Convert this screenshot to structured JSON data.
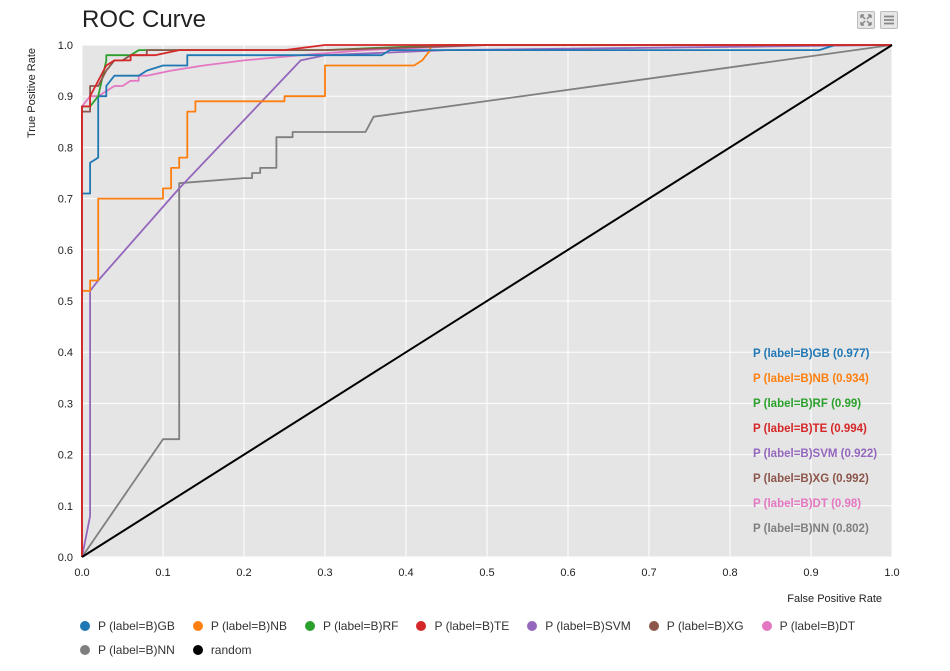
{
  "title": "ROC Curve",
  "toolbar": {
    "expand_icon": "expand-icon",
    "menu_icon": "hamburger-menu-icon"
  },
  "chart_data": {
    "type": "line",
    "title": "ROC Curve",
    "xlabel": "False Positive Rate",
    "ylabel": "True Positive Rate",
    "xlim": [
      0,
      1
    ],
    "ylim": [
      0,
      1
    ],
    "xticks": [
      "0.0",
      "0.1",
      "0.2",
      "0.3",
      "0.4",
      "0.5",
      "0.6",
      "0.7",
      "0.8",
      "0.9",
      "1.0"
    ],
    "yticks": [
      "0.0",
      "0.1",
      "0.2",
      "0.3",
      "0.4",
      "0.5",
      "0.6",
      "0.7",
      "0.8",
      "0.9",
      "1.0"
    ],
    "grid": true,
    "background": "#e5e5e5",
    "series": [
      {
        "name": "P (label=B)GB",
        "color": "#1f77b4",
        "auc_label": "P (label=B)GB (0.977)",
        "x": [
          0,
          0,
          0.01,
          0.01,
          0.02,
          0.02,
          0.03,
          0.03,
          0.04,
          0.05,
          0.07,
          0.08,
          0.1,
          0.13,
          0.13,
          0.37,
          0.38,
          0.4,
          0.4,
          0.91,
          0.93,
          1.0
        ],
        "y": [
          0,
          0.71,
          0.71,
          0.77,
          0.78,
          0.9,
          0.9,
          0.92,
          0.94,
          0.94,
          0.94,
          0.95,
          0.96,
          0.96,
          0.98,
          0.98,
          0.99,
          0.99,
          0.99,
          0.99,
          1.0,
          1.0
        ]
      },
      {
        "name": "P (label=B)NB",
        "color": "#ff7f0e",
        "auc_label": "P (label=B)NB (0.934)",
        "x": [
          0,
          0,
          0.01,
          0.01,
          0.02,
          0.02,
          0.1,
          0.1,
          0.11,
          0.11,
          0.12,
          0.12,
          0.13,
          0.13,
          0.14,
          0.14,
          0.25,
          0.25,
          0.3,
          0.3,
          0.41,
          0.42,
          0.43,
          0.43,
          0.48,
          1.0
        ],
        "y": [
          0,
          0.52,
          0.52,
          0.54,
          0.54,
          0.7,
          0.7,
          0.72,
          0.72,
          0.76,
          0.76,
          0.78,
          0.78,
          0.87,
          0.87,
          0.89,
          0.89,
          0.9,
          0.9,
          0.96,
          0.96,
          0.97,
          0.99,
          1.0,
          1.0,
          1.0
        ]
      },
      {
        "name": "P (label=B)RF",
        "color": "#2ca02c",
        "auc_label": "P (label=B)RF (0.99)",
        "x": [
          0,
          0,
          0.01,
          0.02,
          0.03,
          0.03,
          0.06,
          0.07,
          0.13,
          0.2,
          0.3,
          0.45,
          1.0
        ],
        "y": [
          0,
          0.88,
          0.88,
          0.9,
          0.97,
          0.98,
          0.98,
          0.99,
          0.99,
          0.99,
          0.99,
          1.0,
          1.0
        ]
      },
      {
        "name": "P (label=B)TE",
        "color": "#d62728",
        "auc_label": "P (label=B)TE (0.994)",
        "x": [
          0,
          0,
          0.01,
          0.01,
          0.02,
          0.03,
          0.04,
          0.06,
          0.06,
          0.09,
          0.12,
          0.25,
          0.3,
          0.5,
          1.0
        ],
        "y": [
          0,
          0.88,
          0.88,
          0.9,
          0.93,
          0.96,
          0.97,
          0.97,
          0.98,
          0.98,
          0.99,
          0.99,
          1.0,
          1.0,
          1.0
        ]
      },
      {
        "name": "P (label=B)SVM",
        "color": "#9467bd",
        "auc_label": "P (label=B)SVM (0.922)",
        "x": [
          0,
          0.01,
          0.01,
          0.02,
          0.12,
          0.27,
          0.3,
          0.45,
          1.0
        ],
        "y": [
          0,
          0.08,
          0.52,
          0.54,
          0.72,
          0.97,
          0.98,
          0.99,
          1.0
        ]
      },
      {
        "name": "P (label=B)XG",
        "color": "#8c564b",
        "auc_label": "P (label=B)XG (0.992)",
        "x": [
          0,
          0,
          0.01,
          0.01,
          0.02,
          0.03,
          0.04,
          0.05,
          0.06,
          0.06,
          0.08,
          0.08,
          0.1,
          0.3,
          0.5,
          1.0
        ],
        "y": [
          0,
          0.87,
          0.87,
          0.92,
          0.92,
          0.95,
          0.97,
          0.97,
          0.98,
          0.98,
          0.98,
          0.99,
          0.99,
          0.99,
          1.0,
          1.0
        ]
      },
      {
        "name": "P (label=B)DT",
        "color": "#e377c2",
        "auc_label": "P (label=B)DT (0.98)",
        "x": [
          0,
          0,
          0.01,
          0.02,
          0.03,
          0.04,
          0.05,
          0.06,
          0.07,
          0.07,
          0.08,
          0.11,
          0.15,
          0.2,
          0.27,
          0.35,
          0.5,
          1.0
        ],
        "y": [
          0,
          0.88,
          0.9,
          0.9,
          0.91,
          0.92,
          0.92,
          0.93,
          0.93,
          0.94,
          0.94,
          0.95,
          0.96,
          0.97,
          0.98,
          0.99,
          1.0,
          1.0
        ]
      },
      {
        "name": "P (label=B)NN",
        "color": "#7f7f7f",
        "auc_label": "P (label=B)NN (0.802)",
        "x": [
          0,
          0.1,
          0.12,
          0.12,
          0.2,
          0.21,
          0.21,
          0.22,
          0.22,
          0.24,
          0.24,
          0.26,
          0.26,
          0.35,
          0.36,
          1.0
        ],
        "y": [
          0,
          0.23,
          0.23,
          0.73,
          0.74,
          0.74,
          0.75,
          0.75,
          0.76,
          0.76,
          0.82,
          0.82,
          0.83,
          0.83,
          0.86,
          1.0
        ]
      },
      {
        "name": "random",
        "color": "#000000",
        "x": [
          0,
          1
        ],
        "y": [
          0,
          1
        ]
      }
    ]
  }
}
